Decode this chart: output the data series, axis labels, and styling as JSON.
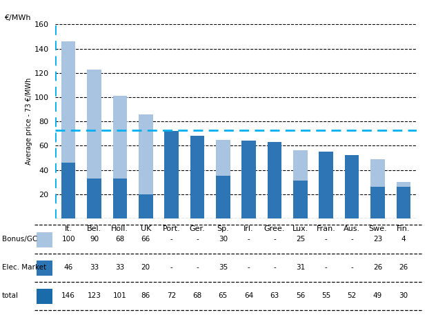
{
  "categories": [
    "It.",
    "Bel.",
    "Holl.",
    "UK",
    "Port.",
    "Ger.",
    "Sp.",
    "Irl.",
    "Gree.",
    "Lux.",
    "Fran.",
    "Aus.",
    "Swe.",
    "Fin."
  ],
  "bonus_gc": [
    100,
    90,
    68,
    66,
    0,
    0,
    30,
    0,
    0,
    25,
    0,
    0,
    23,
    4
  ],
  "elec_market": [
    46,
    33,
    33,
    20,
    72,
    68,
    35,
    64,
    63,
    31,
    55,
    52,
    26,
    26
  ],
  "bonus_gc_label": [
    "100",
    "90",
    "68",
    "66",
    "-",
    "-",
    "30",
    "-",
    "-",
    "25",
    "-",
    "-",
    "23",
    "4"
  ],
  "elec_market_label": [
    "46",
    "33",
    "33",
    "20",
    "-",
    "-",
    "35",
    "-",
    "-",
    "31",
    "-",
    "-",
    "26",
    "26"
  ],
  "total_label": [
    "146",
    "123",
    "101",
    "86",
    "72",
    "68",
    "65",
    "64",
    "63",
    "56",
    "55",
    "52",
    "49",
    "30"
  ],
  "average_line": 73,
  "ylim": [
    0,
    160
  ],
  "yticks": [
    0,
    20,
    40,
    60,
    80,
    100,
    120,
    140,
    160
  ],
  "color_bonus": "#a8c4e0",
  "color_elec": "#2e75b6",
  "color_avg_line": "#00b0f0",
  "ylabel_top": "€/MWh",
  "avg_label": "Average price - 73 €/MWh",
  "grid_color": "#000000",
  "row_label_bonus": "Bonus/GC",
  "row_label_elec": "Elec. Market",
  "row_label_total": "total",
  "color_total_swatch": "#1a6baa"
}
